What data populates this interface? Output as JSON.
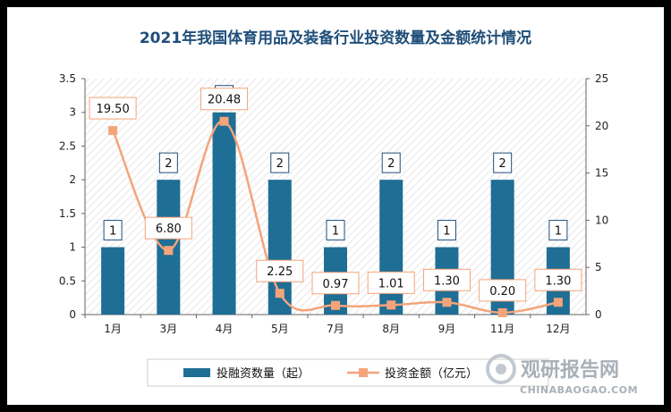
{
  "chart_data": {
    "type": "bar+line",
    "title": "2021年我国体育用品及装备行业投资数量及金额统计情况",
    "categories": [
      "1月",
      "3月",
      "4月",
      "5月",
      "7月",
      "8月",
      "9月",
      "11月",
      "12月"
    ],
    "series": [
      {
        "name": "投融资数量（起）",
        "type": "bar",
        "axis": "left",
        "values": [
          1,
          2,
          3,
          2,
          1,
          2,
          1,
          2,
          1
        ],
        "color": "#1F6E95"
      },
      {
        "name": "投资金额（亿元）",
        "type": "line",
        "axis": "right",
        "values": [
          19.5,
          6.8,
          20.48,
          2.25,
          0.97,
          1.01,
          1.3,
          0.2,
          1.3
        ],
        "color": "#F4A47A"
      }
    ],
    "bar_labels": [
      "1",
      "2",
      "3",
      "2",
      "1",
      "2",
      "1",
      "2",
      "1"
    ],
    "line_labels": [
      "19.50",
      "6.80",
      "20.48",
      "2.25",
      "0.97",
      "1.01",
      "1.30",
      "0.20",
      "1.30"
    ],
    "y_left": {
      "ylim": [
        0,
        3.5
      ],
      "ticks": [
        "0",
        "0.5",
        "1",
        "1.5",
        "2",
        "2.5",
        "3",
        "3.5"
      ]
    },
    "y_right": {
      "ylim": [
        0,
        25
      ],
      "ticks": [
        "0",
        "5",
        "10",
        "15",
        "20",
        "25"
      ]
    },
    "legend_position": "bottom",
    "grid": false
  },
  "watermark": {
    "brand": "观研报告网",
    "url": "CHINABAOGAO.COM"
  }
}
